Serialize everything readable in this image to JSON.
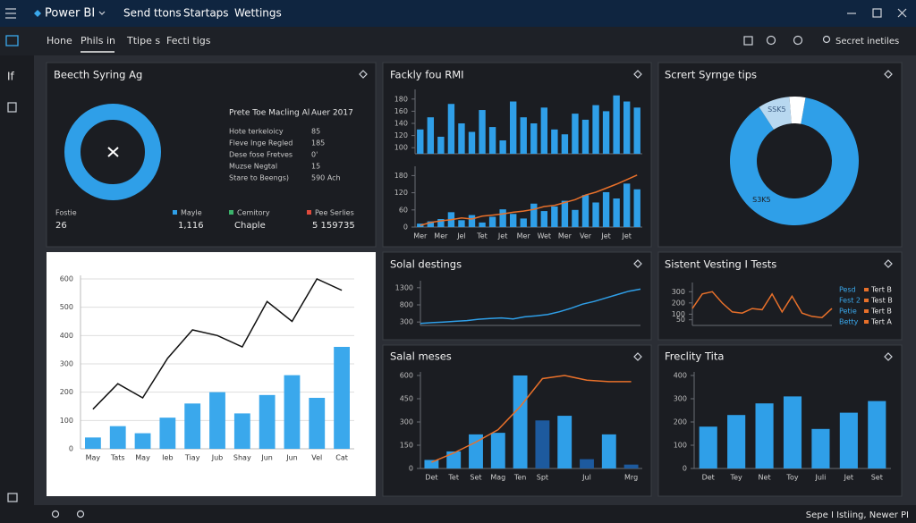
{
  "titlebar": {
    "app": "Power BI",
    "menu": [
      "Send ttons",
      "Startaps",
      "Wettings"
    ]
  },
  "ribbon": {
    "tabs": [
      "Hone",
      "Phils in",
      "Ttipe s",
      "Fecti tigs"
    ],
    "search": "Secret inetiles"
  },
  "sidebar": {
    "label": "If"
  },
  "status": "Sepe I Istiing, Newer PI",
  "summary_card": {
    "title": "Beecth Syring Ag",
    "heading": [
      "Prete Toe Macling Al",
      "Auer 2017"
    ],
    "rows": [
      [
        "Hote terkeloicy",
        "85"
      ],
      [
        "Fleve Inge Regled",
        "185"
      ],
      [
        "Dese fose Fretves",
        "0'"
      ],
      [
        "Muzse Negtal",
        "15"
      ],
      [
        "Stare to Beengs)",
        "590 Ach"
      ]
    ],
    "footer": [
      {
        "label": "Fostie",
        "value": "26"
      },
      {
        "label": "Mayle",
        "value": "1,116"
      },
      {
        "label": "Cemitory",
        "value": "Chaple"
      },
      {
        "label": "Pee Serlies",
        "value": "5 159735"
      }
    ]
  },
  "chart_data": [
    {
      "type": "bar",
      "title": "Fackly fou RMI",
      "categories": [
        null,
        null,
        null,
        null,
        null,
        null,
        null,
        null,
        null,
        null,
        null,
        null,
        null,
        null,
        null,
        null,
        null,
        null,
        null,
        null,
        null,
        null
      ],
      "values": [
        130,
        150,
        118,
        172,
        140,
        126,
        162,
        134,
        112,
        176,
        150,
        140,
        166,
        130,
        122,
        156,
        146,
        170,
        160,
        186,
        176,
        166
      ],
      "color": "#2f9fe8",
      "ylim": [
        90,
        190
      ],
      "yticks": [
        100,
        120,
        140,
        160,
        180
      ]
    },
    {
      "type": "bar",
      "categories": [
        "Mer",
        null,
        "Mer",
        null,
        "Jel",
        null,
        "Tet",
        null,
        "Jet",
        null,
        "Mer",
        null,
        "Wet",
        null,
        "Mer",
        null,
        "Ver",
        null,
        "Jet",
        null,
        "Jet",
        null
      ],
      "series": [
        {
          "type": "bar",
          "color": "#2f9fe8",
          "values": [
            12,
            20,
            28,
            52,
            24,
            42,
            16,
            36,
            62,
            46,
            30,
            82,
            56,
            72,
            92,
            60,
            112,
            86,
            122,
            100,
            152,
            132
          ]
        },
        {
          "type": "line",
          "color": "#e8702a",
          "values": [
            6,
            16,
            22,
            26,
            32,
            28,
            38,
            42,
            46,
            52,
            56,
            62,
            72,
            76,
            86,
            96,
            112,
            122,
            136,
            150,
            166,
            182
          ]
        }
      ],
      "ylim": [
        0,
        200
      ],
      "yticks": [
        0,
        60,
        120,
        180
      ]
    },
    {
      "type": "pie",
      "title": "Scrert Syrnge tips",
      "categories": [
        "S3K5",
        "SSK5",
        null
      ],
      "values": [
        88,
        8,
        4
      ],
      "colors": [
        "#2f9fe8",
        "#b8d8f0",
        "#ffffff"
      ],
      "donut": true
    },
    {
      "type": "bar",
      "theme": "light",
      "grid": true,
      "categories": [
        "May",
        "Tats",
        "May",
        "Ieb",
        "Tiay",
        "Jub",
        "Shay",
        "Jun",
        "Jun",
        "Vel",
        "Cat"
      ],
      "series": [
        {
          "type": "bar",
          "color": "#3aa8ec",
          "values": [
            40,
            80,
            55,
            110,
            160,
            200,
            125,
            190,
            260,
            180,
            360
          ]
        },
        {
          "type": "line",
          "color": "#111111",
          "values": [
            140,
            230,
            180,
            320,
            420,
            400,
            360,
            520,
            450,
            600,
            560
          ]
        }
      ],
      "ylim": [
        0,
        600
      ],
      "yticks": [
        0,
        100,
        200,
        300,
        400,
        500,
        600
      ]
    },
    {
      "type": "line",
      "title": "Solal destings",
      "series": [
        {
          "color": "#2f9fe8",
          "values": [
            260,
            280,
            300,
            320,
            340,
            380,
            400,
            420,
            390,
            450,
            480,
            520,
            600,
            700,
            820,
            900,
            1000,
            1100,
            1200,
            1260
          ]
        }
      ],
      "ylim": [
        200,
        1400
      ],
      "yticks": [
        300,
        800,
        1300
      ]
    },
    {
      "type": "line",
      "title": "Sistent Vesting I Tests",
      "series": [
        {
          "color": "#e8702a",
          "values": [
            150,
            280,
            300,
            200,
            120,
            110,
            150,
            140,
            280,
            120,
            260,
            110,
            80,
            70,
            150
          ]
        }
      ],
      "ylim": [
        0,
        350
      ],
      "yticks": [
        50,
        100,
        200,
        300
      ],
      "legend": [
        {
          "label": "Pesd",
          "name": "Tert B"
        },
        {
          "label": "Fest 2",
          "name": "Test B"
        },
        {
          "label": "Petie",
          "name": "Tert B"
        },
        {
          "label": "Betty",
          "name": "Tert A"
        }
      ]
    },
    {
      "type": "bar",
      "title": "Salal meses",
      "categories": [
        "Det",
        "Tet",
        "Set",
        "Mag",
        "Ten",
        "Spt",
        null,
        "Jul",
        null,
        "Mrg"
      ],
      "series": [
        {
          "type": "bar",
          "values": [
            55,
            110,
            220,
            230,
            600,
            310,
            340,
            60,
            220,
            25
          ],
          "colors": [
            "#2f9fe8",
            "#2f9fe8",
            "#2f9fe8",
            "#2f9fe8",
            "#2f9fe8",
            "#1d5a9e",
            "#2f9fe8",
            "#1d5a9e",
            "#2f9fe8",
            "#1d5a9e"
          ]
        },
        {
          "type": "line",
          "color": "#e8702a",
          "values": [
            40,
            100,
            170,
            250,
            400,
            580,
            600,
            570,
            560,
            560
          ]
        }
      ],
      "ylim": [
        0,
        600
      ],
      "yticks": [
        0,
        150,
        300,
        450,
        600
      ]
    },
    {
      "type": "bar",
      "title": "Freclity Tita",
      "categories": [
        "Det",
        "Tey",
        "Net",
        "Toy",
        "Juli",
        "Jet",
        "Set"
      ],
      "values": [
        180,
        230,
        280,
        310,
        170,
        240,
        290
      ],
      "color": "#2f9fe8",
      "ylim": [
        0,
        400
      ],
      "yticks": [
        0,
        100,
        200,
        300,
        400
      ]
    }
  ]
}
